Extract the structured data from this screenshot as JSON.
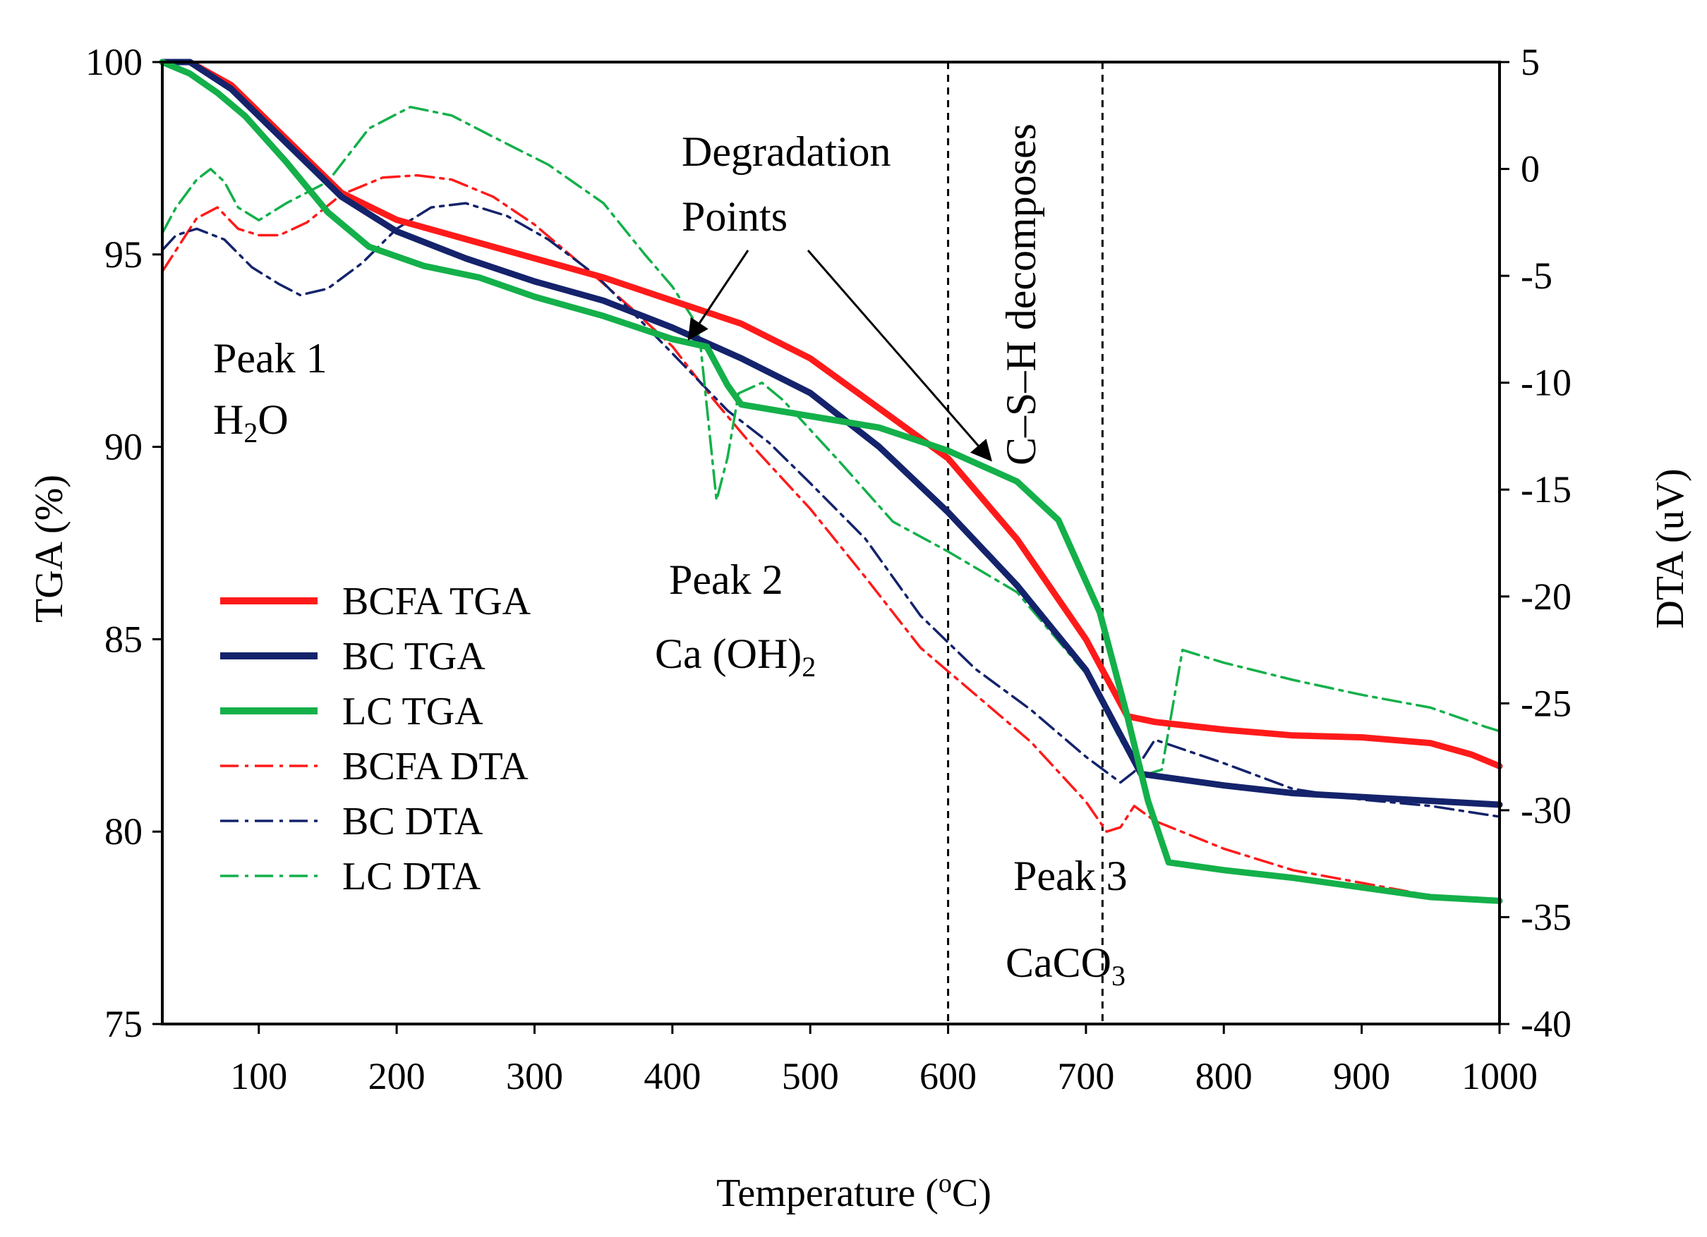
{
  "chart_data": {
    "type": "line",
    "title": "",
    "xlabel": "Temperature (oC)",
    "xlabel_main": "Temperature (",
    "xlabel_sup": "o",
    "xlabel_end": "C)",
    "ylabel_left": "TGA (%)",
    "ylabel_right": "DTA (uV)",
    "xlim": [
      30,
      1000
    ],
    "ylim_left": [
      75,
      100
    ],
    "ylim_right": [
      -40,
      5
    ],
    "x_ticks": [
      "100",
      "200",
      "300",
      "400",
      "500",
      "600",
      "700",
      "800",
      "900",
      "1000"
    ],
    "y_left_ticks": [
      "75",
      "80",
      "85",
      "90",
      "95",
      "100"
    ],
    "y_right_ticks": [
      "-40",
      "-35",
      "-30",
      "-25",
      "-20",
      "-15",
      "-10",
      "-5",
      "0",
      "5"
    ],
    "vlines": [
      600,
      712
    ],
    "series": [
      {
        "name": "BCFA TGA",
        "axis": "left",
        "color": "#ff1a1a",
        "style": "solid",
        "points": [
          [
            30,
            100
          ],
          [
            50,
            100
          ],
          [
            80,
            99.4
          ],
          [
            120,
            98
          ],
          [
            160,
            96.6
          ],
          [
            200,
            95.9
          ],
          [
            250,
            95.4
          ],
          [
            300,
            94.9
          ],
          [
            350,
            94.4
          ],
          [
            400,
            93.8
          ],
          [
            450,
            93.2
          ],
          [
            500,
            92.3
          ],
          [
            550,
            91
          ],
          [
            600,
            89.7
          ],
          [
            650,
            87.6
          ],
          [
            700,
            85
          ],
          [
            730,
            83
          ],
          [
            750,
            82.85
          ],
          [
            800,
            82.65
          ],
          [
            850,
            82.5
          ],
          [
            900,
            82.45
          ],
          [
            950,
            82.3
          ],
          [
            980,
            82
          ],
          [
            1000,
            81.7
          ]
        ]
      },
      {
        "name": "BC TGA",
        "axis": "left",
        "color": "#14236b",
        "style": "solid",
        "points": [
          [
            30,
            100
          ],
          [
            50,
            100
          ],
          [
            80,
            99.3
          ],
          [
            120,
            97.9
          ],
          [
            160,
            96.5
          ],
          [
            200,
            95.6
          ],
          [
            250,
            94.9
          ],
          [
            300,
            94.3
          ],
          [
            350,
            93.8
          ],
          [
            400,
            93.1
          ],
          [
            450,
            92.3
          ],
          [
            500,
            91.4
          ],
          [
            550,
            90
          ],
          [
            600,
            88.3
          ],
          [
            650,
            86.4
          ],
          [
            700,
            84.2
          ],
          [
            740,
            81.5
          ],
          [
            760,
            81.4
          ],
          [
            800,
            81.2
          ],
          [
            850,
            81
          ],
          [
            900,
            80.9
          ],
          [
            950,
            80.8
          ],
          [
            1000,
            80.7
          ]
        ]
      },
      {
        "name": "LC TGA",
        "axis": "left",
        "color": "#14b04a",
        "style": "solid",
        "points": [
          [
            30,
            100
          ],
          [
            50,
            99.7
          ],
          [
            70,
            99.2
          ],
          [
            90,
            98.6
          ],
          [
            120,
            97.4
          ],
          [
            150,
            96.1
          ],
          [
            180,
            95.2
          ],
          [
            220,
            94.7
          ],
          [
            260,
            94.4
          ],
          [
            300,
            93.9
          ],
          [
            350,
            93.4
          ],
          [
            400,
            92.8
          ],
          [
            425,
            92.6
          ],
          [
            440,
            91.6
          ],
          [
            450,
            91.1
          ],
          [
            500,
            90.8
          ],
          [
            550,
            90.5
          ],
          [
            600,
            89.9
          ],
          [
            650,
            89.1
          ],
          [
            680,
            88.1
          ],
          [
            710,
            85.7
          ],
          [
            730,
            83
          ],
          [
            745,
            80.8
          ],
          [
            760,
            79.2
          ],
          [
            800,
            79
          ],
          [
            850,
            78.8
          ],
          [
            900,
            78.55
          ],
          [
            950,
            78.3
          ],
          [
            1000,
            78.2
          ]
        ]
      },
      {
        "name": "BCFA DTA",
        "axis": "right",
        "color": "#ff1a1a",
        "style": "dashdot",
        "points": [
          [
            30,
            -4.8
          ],
          [
            40,
            -3.8
          ],
          [
            55,
            -2.3
          ],
          [
            70,
            -1.8
          ],
          [
            85,
            -2.8
          ],
          [
            100,
            -3.1
          ],
          [
            115,
            -3.1
          ],
          [
            135,
            -2.5
          ],
          [
            160,
            -1.2
          ],
          [
            190,
            -0.4
          ],
          [
            215,
            -0.3
          ],
          [
            240,
            -0.5
          ],
          [
            270,
            -1.3
          ],
          [
            300,
            -2.6
          ],
          [
            340,
            -4.8
          ],
          [
            370,
            -6.5
          ],
          [
            400,
            -8.3
          ],
          [
            430,
            -10.8
          ],
          [
            460,
            -13.1
          ],
          [
            500,
            -15.9
          ],
          [
            540,
            -19.1
          ],
          [
            580,
            -22.4
          ],
          [
            620,
            -24.6
          ],
          [
            660,
            -26.8
          ],
          [
            700,
            -29.6
          ],
          [
            715,
            -31
          ],
          [
            725,
            -30.8
          ],
          [
            735,
            -29.8
          ],
          [
            750,
            -30.5
          ],
          [
            800,
            -31.8
          ],
          [
            850,
            -32.8
          ],
          [
            900,
            -33.4
          ],
          [
            950,
            -34
          ],
          [
            1000,
            -34.3
          ]
        ]
      },
      {
        "name": "BC DTA",
        "axis": "right",
        "color": "#14236b",
        "style": "dashdot",
        "points": [
          [
            30,
            -3.8
          ],
          [
            40,
            -3.1
          ],
          [
            55,
            -2.8
          ],
          [
            75,
            -3.3
          ],
          [
            95,
            -4.6
          ],
          [
            115,
            -5.4
          ],
          [
            130,
            -5.9
          ],
          [
            150,
            -5.6
          ],
          [
            175,
            -4.4
          ],
          [
            200,
            -2.8
          ],
          [
            225,
            -1.8
          ],
          [
            250,
            -1.6
          ],
          [
            280,
            -2.2
          ],
          [
            310,
            -3.3
          ],
          [
            345,
            -5
          ],
          [
            380,
            -7.3
          ],
          [
            410,
            -9.3
          ],
          [
            440,
            -11.3
          ],
          [
            470,
            -12.8
          ],
          [
            500,
            -14.7
          ],
          [
            540,
            -17.3
          ],
          [
            580,
            -20.9
          ],
          [
            620,
            -23.4
          ],
          [
            660,
            -25.3
          ],
          [
            700,
            -27.5
          ],
          [
            725,
            -28.7
          ],
          [
            735,
            -28.2
          ],
          [
            750,
            -26.7
          ],
          [
            800,
            -27.8
          ],
          [
            850,
            -29
          ],
          [
            900,
            -29.5
          ],
          [
            950,
            -29.8
          ],
          [
            1000,
            -30.3
          ]
        ]
      },
      {
        "name": "LC DTA",
        "axis": "right",
        "color": "#14b04a",
        "style": "dashdot",
        "points": [
          [
            30,
            -3
          ],
          [
            40,
            -1.8
          ],
          [
            55,
            -0.5
          ],
          [
            65,
            0
          ],
          [
            75,
            -0.6
          ],
          [
            85,
            -1.8
          ],
          [
            100,
            -2.4
          ],
          [
            120,
            -1.6
          ],
          [
            150,
            -0.6
          ],
          [
            180,
            1.9
          ],
          [
            210,
            2.9
          ],
          [
            240,
            2.5
          ],
          [
            270,
            1.5
          ],
          [
            310,
            0.2
          ],
          [
            350,
            -1.6
          ],
          [
            380,
            -4
          ],
          [
            400,
            -5.5
          ],
          [
            415,
            -7
          ],
          [
            420,
            -8
          ],
          [
            432,
            -15.5
          ],
          [
            440,
            -13.5
          ],
          [
            448,
            -10.5
          ],
          [
            465,
            -10
          ],
          [
            480,
            -10.8
          ],
          [
            520,
            -13.6
          ],
          [
            560,
            -16.5
          ],
          [
            600,
            -17.9
          ],
          [
            650,
            -19.8
          ],
          [
            700,
            -23.6
          ],
          [
            725,
            -26.7
          ],
          [
            740,
            -28.4
          ],
          [
            755,
            -28.1
          ],
          [
            770,
            -22.5
          ],
          [
            800,
            -23.1
          ],
          [
            850,
            -23.9
          ],
          [
            900,
            -24.6
          ],
          [
            950,
            -25.2
          ],
          [
            990,
            -26.1
          ],
          [
            1000,
            -26.3
          ]
        ]
      }
    ],
    "legend": {
      "position": "left-middle",
      "entries": [
        "BCFA TGA",
        "BC TGA",
        "LC TGA",
        "BCFA DTA",
        "BC DTA",
        "LC DTA"
      ]
    },
    "annotations": {
      "peak1_line1": "Peak 1",
      "peak1_h": "H",
      "peak1_sub": "2",
      "peak1_o": "O",
      "peak2_line1": "Peak 2",
      "peak2_ca": "Ca (OH)",
      "peak2_sub": "2",
      "peak3_line1": "Peak 3",
      "peak3_caco": "CaCO",
      "peak3_sub": "3",
      "degradation_line1": "Degradation",
      "degradation_line2": "Points",
      "csh": "C–S–H decomposes"
    }
  }
}
